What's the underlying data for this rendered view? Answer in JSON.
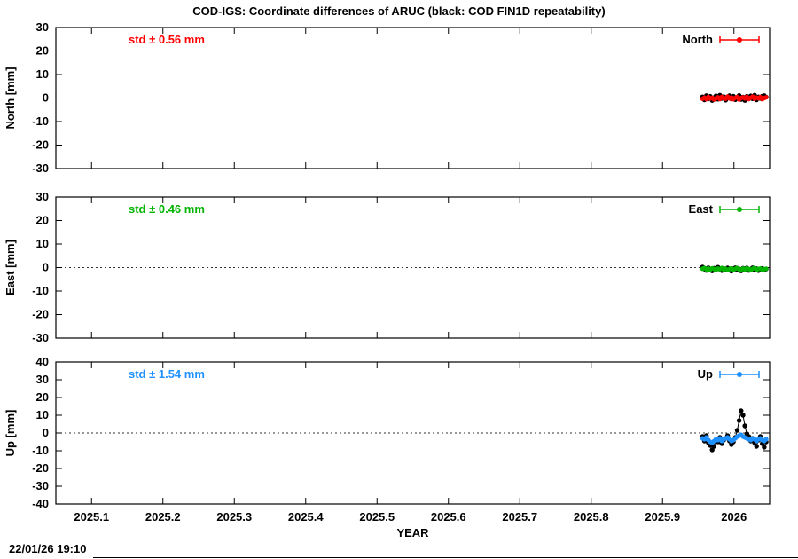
{
  "header": {
    "title": "COD-IGS: Coordinate differences of ARUC (black: COD FIN1D repeatability)"
  },
  "footer": {
    "xlabel": "YEAR",
    "timestamp": "22/01/26 19:10"
  },
  "chart_data": [
    {
      "type": "scatter",
      "name": "North",
      "ylabel": "North [mm]",
      "std_label": "std ± 0.56 mm",
      "color": "#ff0000",
      "black_color": "#000000",
      "ylim": [
        -30,
        30
      ],
      "yticks": [
        -30,
        -20,
        -10,
        0,
        10,
        20,
        30
      ],
      "xlim": [
        2025.05,
        2026.05
      ],
      "xticks": [
        {
          "v": 2025.1,
          "label": "2025.1"
        },
        {
          "v": 2025.2,
          "label": "2025.2"
        },
        {
          "v": 2025.3,
          "label": "2025.3"
        },
        {
          "v": 2025.4,
          "label": "2025.4"
        },
        {
          "v": 2025.5,
          "label": "2025.5"
        },
        {
          "v": 2025.6,
          "label": "2025.6"
        },
        {
          "v": 2025.7,
          "label": "2025.7"
        },
        {
          "v": 2025.8,
          "label": "2025.8"
        },
        {
          "v": 2025.9,
          "label": "2025.9"
        },
        {
          "v": 2026.0,
          "label": "2026"
        }
      ],
      "x": [
        2025.956,
        2025.9587,
        2025.9614,
        2025.9641,
        2025.9668,
        2025.9695,
        2025.9722,
        2025.9749,
        2025.9776,
        2025.9803,
        2025.983,
        2025.9857,
        2025.9884,
        2025.9911,
        2025.9938,
        2025.9965,
        2025.9992,
        2026.0019,
        2026.0046,
        2026.0073,
        2026.01,
        2026.0127,
        2026.0154,
        2026.0181,
        2026.0208,
        2026.0235,
        2026.0262,
        2026.0289,
        2026.0316,
        2026.0343,
        2026.037,
        2026.0397,
        2026.0424,
        2026.0451
      ],
      "series_black": [
        0.5,
        -0.8,
        1.0,
        -0.3,
        0.7,
        -1.0,
        0.2,
        0.9,
        -0.5,
        1.2,
        -0.2,
        0.6,
        -0.9,
        0.3,
        1.0,
        -0.4,
        0.8,
        -0.7,
        0.1,
        1.1,
        -0.6,
        0.4,
        -1.0,
        0.7,
        0.0,
        0.9,
        -0.3,
        1.2,
        -0.8,
        0.5,
        -0.2,
        0.8,
        1.0,
        0.4
      ],
      "series_colored": [
        -0.3,
        0.2,
        -0.5,
        0.4,
        -0.2,
        0.1,
        -0.6,
        -0.1,
        0.3,
        -0.4,
        0.5,
        0.0,
        -0.3,
        0.6,
        -0.2,
        0.2,
        -0.5,
        0.1,
        0.4,
        -0.6,
        0.0,
        0.3,
        -0.2,
        0.5,
        -0.4,
        0.1,
        0.6,
        -0.3,
        0.2,
        -0.1,
        0.4,
        -0.5,
        0.0,
        0.3
      ]
    },
    {
      "type": "scatter",
      "name": "East",
      "ylabel": "East [mm]",
      "std_label": "std ± 0.46 mm",
      "color": "#00b400",
      "black_color": "#000000",
      "ylim": [
        -30,
        30
      ],
      "yticks": [
        -30,
        -20,
        -10,
        0,
        10,
        20,
        30
      ],
      "xlim": [
        2025.05,
        2026.05
      ],
      "xticks": [
        {
          "v": 2025.1,
          "label": "2025.1"
        },
        {
          "v": 2025.2,
          "label": "2025.2"
        },
        {
          "v": 2025.3,
          "label": "2025.3"
        },
        {
          "v": 2025.4,
          "label": "2025.4"
        },
        {
          "v": 2025.5,
          "label": "2025.5"
        },
        {
          "v": 2025.6,
          "label": "2025.6"
        },
        {
          "v": 2025.7,
          "label": "2025.7"
        },
        {
          "v": 2025.8,
          "label": "2025.8"
        },
        {
          "v": 2025.9,
          "label": "2025.9"
        },
        {
          "v": 2026.0,
          "label": "2026"
        }
      ],
      "x": [
        2025.956,
        2025.9587,
        2025.9614,
        2025.9641,
        2025.9668,
        2025.9695,
        2025.9722,
        2025.9749,
        2025.9776,
        2025.9803,
        2025.983,
        2025.9857,
        2025.9884,
        2025.9911,
        2025.9938,
        2025.9965,
        2025.9992,
        2026.0019,
        2026.0046,
        2026.0073,
        2026.01,
        2026.0127,
        2026.0154,
        2026.0181,
        2026.0208,
        2026.0235,
        2026.0262,
        2026.0289,
        2026.0316,
        2026.0343,
        2026.037,
        2026.0397,
        2026.0424,
        2026.0451
      ],
      "series_black": [
        0.2,
        -0.6,
        -1.2,
        -0.1,
        -0.8,
        -1.4,
        -0.3,
        -0.9,
        0.1,
        -0.7,
        -1.3,
        -0.4,
        -1.0,
        -0.2,
        -0.8,
        -1.5,
        -0.5,
        -0.1,
        -1.1,
        -0.6,
        -1.4,
        -0.3,
        -0.9,
        -0.2,
        -1.2,
        -0.7,
        -0.1,
        -1.0,
        -0.5,
        -1.3,
        -0.8,
        -0.4,
        -1.1,
        -0.6
      ],
      "series_colored": [
        -0.5,
        -0.2,
        -0.8,
        -0.4,
        -0.9,
        -0.3,
        -0.6,
        -1.0,
        -0.4,
        -0.7,
        -0.2,
        -0.8,
        -0.5,
        -1.1,
        -0.6,
        -0.3,
        -0.9,
        -0.5,
        -0.2,
        -0.7,
        -1.0,
        -0.4,
        -0.8,
        -0.3,
        -0.6,
        -1.1,
        -0.5,
        -0.2,
        -0.9,
        -0.6,
        -0.4,
        -1.0,
        -0.7,
        -0.5
      ]
    },
    {
      "type": "scatter",
      "name": "Up",
      "ylabel": "Up [mm]",
      "std_label": "std ± 1.54 mm",
      "color": "#1e90ff",
      "black_color": "#000000",
      "ylim": [
        -40,
        40
      ],
      "yticks": [
        -40,
        -30,
        -20,
        -10,
        0,
        10,
        20,
        30,
        40
      ],
      "xlim": [
        2025.05,
        2026.05
      ],
      "xticks": [
        {
          "v": 2025.1,
          "label": "2025.1"
        },
        {
          "v": 2025.2,
          "label": "2025.2"
        },
        {
          "v": 2025.3,
          "label": "2025.3"
        },
        {
          "v": 2025.4,
          "label": "2025.4"
        },
        {
          "v": 2025.5,
          "label": "2025.5"
        },
        {
          "v": 2025.6,
          "label": "2025.6"
        },
        {
          "v": 2025.7,
          "label": "2025.7"
        },
        {
          "v": 2025.8,
          "label": "2025.8"
        },
        {
          "v": 2025.9,
          "label": "2025.9"
        },
        {
          "v": 2026.0,
          "label": "2026"
        }
      ],
      "x": [
        2025.956,
        2025.9587,
        2025.9614,
        2025.9641,
        2025.9668,
        2025.9695,
        2025.9722,
        2025.9749,
        2025.9776,
        2025.9803,
        2025.983,
        2025.9857,
        2025.9884,
        2025.9911,
        2025.9938,
        2025.9965,
        2025.9992,
        2026.0019,
        2026.0046,
        2026.0073,
        2026.01,
        2026.0127,
        2026.0154,
        2026.0181,
        2026.0208,
        2026.0235,
        2026.0262,
        2026.0289,
        2026.0316,
        2026.0343,
        2026.037,
        2026.0397,
        2026.0424,
        2026.0451
      ],
      "series_black": [
        -2.0,
        -4.5,
        -1.5,
        -5.5,
        -7.0,
        -9.5,
        -7.5,
        -4.0,
        -5.0,
        -2.5,
        -6.0,
        -4.0,
        -3.0,
        -1.5,
        -4.5,
        -6.5,
        -5.0,
        -2.5,
        1.5,
        7.0,
        12.5,
        10.0,
        4.0,
        -0.5,
        -2.0,
        -4.5,
        -3.0,
        -5.5,
        -7.5,
        -4.0,
        -2.0,
        -6.0,
        -8.0,
        -5.0
      ],
      "series_colored": [
        -3.0,
        -3.5,
        -2.5,
        -4.0,
        -5.0,
        -5.5,
        -4.5,
        -3.5,
        -4.0,
        -3.0,
        -4.5,
        -3.5,
        -3.0,
        -2.5,
        -3.5,
        -4.5,
        -4.0,
        -3.0,
        -2.0,
        -1.5,
        -1.0,
        -2.0,
        -2.5,
        -3.0,
        -3.5,
        -4.0,
        -3.0,
        -3.5,
        -4.5,
        -3.5,
        -3.0,
        -4.0,
        -4.5,
        -3.5
      ]
    }
  ]
}
